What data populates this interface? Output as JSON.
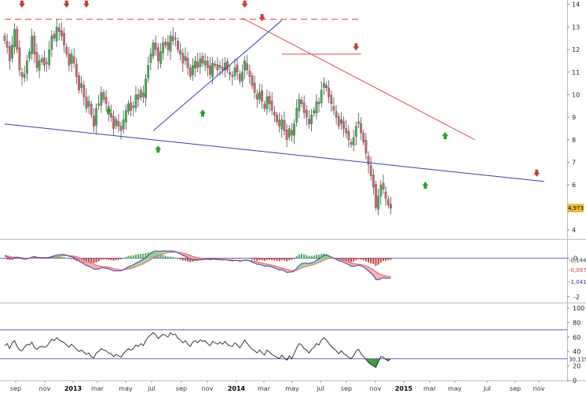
{
  "chart_data": [
    {
      "panel": "price",
      "type": "candlestick",
      "ylim": [
        3.6,
        14.2
      ],
      "yticks": [
        4,
        5,
        6,
        7,
        8,
        9,
        10,
        11,
        12,
        13,
        14
      ],
      "last_value": "4,973",
      "colors": {
        "up": "#3cb34a",
        "down": "#d9606b",
        "trend_up": "#3a3ab0",
        "trend_down": "#d94a4a",
        "arrow_up": "#2aa02a",
        "arrow_down": "#c04040",
        "badge": "#f1c232"
      },
      "close": [
        12.4,
        12.1,
        11.5,
        12.2,
        12.9,
        12.0,
        11.1,
        10.8,
        10.9,
        11.5,
        11.9,
        12.6,
        11.8,
        11.2,
        11.5,
        11.6,
        11.3,
        11.4,
        12.0,
        12.6,
        12.5,
        13.0,
        12.8,
        12.6,
        12.2,
        11.8,
        11.3,
        11.8,
        11.4,
        10.8,
        10.2,
        10.5,
        9.9,
        9.4,
        9.7,
        9.1,
        8.6,
        9.4,
        9.6,
        10.1,
        9.8,
        9.6,
        9.2,
        9.0,
        8.5,
        8.9,
        8.6,
        8.4,
        8.9,
        9.3,
        9.6,
        9.3,
        9.5,
        10.0,
        9.8,
        10.2,
        9.9,
        10.7,
        11.3,
        11.8,
        12.3,
        12.0,
        11.5,
        11.9,
        12.3,
        12.2,
        12.0,
        12.6,
        12.4,
        12.5,
        12.0,
        11.8,
        11.4,
        11.7,
        11.2,
        10.8,
        11.3,
        11.5,
        11.2,
        11.6,
        11.4,
        11.5,
        11.2,
        10.9,
        11.4,
        11.3,
        11.1,
        11.3,
        11.1,
        11.4,
        11.1,
        10.9,
        10.8,
        11.2,
        11.0,
        10.6,
        11.0,
        11.5,
        11.1,
        10.8,
        10.4,
        10.1,
        9.8,
        10.1,
        9.7,
        9.4,
        9.9,
        9.6,
        9.3,
        9.1,
        8.8,
        8.6,
        8.9,
        8.4,
        8.0,
        8.5,
        8.2,
        8.7,
        9.4,
        9.8,
        9.6,
        9.2,
        9.0,
        8.7,
        9.1,
        9.3,
        9.7,
        9.6,
        10.2,
        10.5,
        10.3,
        9.9,
        9.6,
        9.3,
        9.0,
        8.6,
        8.9,
        8.5,
        8.3,
        8.0,
        7.8,
        8.1,
        8.6,
        8.8,
        8.3,
        7.9,
        7.4,
        6.9,
        6.4,
        5.9,
        5.0,
        5.5,
        6.0,
        5.8,
        5.4,
        5.1,
        4.97
      ],
      "trendlines": [
        {
          "from": [
            0,
            13.35
          ],
          "to": [
            144,
            13.35
          ],
          "style": "dashed-red"
        },
        {
          "from": [
            112,
            11.8
          ],
          "to": [
            144,
            11.8
          ],
          "style": "solid-red"
        },
        {
          "from": [
            96,
            13.4
          ],
          "to": [
            190,
            8.0
          ],
          "style": "solid-red"
        },
        {
          "from": [
            60,
            8.4
          ],
          "to": [
            112,
            13.3
          ],
          "style": "solid-blue"
        },
        {
          "from": [
            0,
            8.7
          ],
          "to": [
            218,
            6.15
          ],
          "style": "solid-blue"
        }
      ]
    },
    {
      "panel": "macd",
      "type": "area",
      "ylim": [
        -2.3,
        0.75
      ],
      "yticks": [
        -2,
        0
      ],
      "labels": [
        "-0,144",
        "-0,097",
        "-1,041"
      ],
      "macd": [
        0.12,
        0.06,
        0.0,
        -0.02,
        0.02,
        0.05,
        0.02,
        -0.03,
        -0.06,
        -0.04,
        0.0,
        0.06,
        0.08,
        0.05,
        0.03,
        0.02,
        0.02,
        0.02,
        0.04,
        0.09,
        0.12,
        0.16,
        0.18,
        0.19,
        0.18,
        0.15,
        0.1,
        0.08,
        0.03,
        -0.05,
        -0.14,
        -0.22,
        -0.3,
        -0.38,
        -0.42,
        -0.48,
        -0.56,
        -0.58,
        -0.56,
        -0.5,
        -0.5,
        -0.52,
        -0.56,
        -0.6,
        -0.66,
        -0.66,
        -0.66,
        -0.66,
        -0.6,
        -0.52,
        -0.44,
        -0.4,
        -0.34,
        -0.26,
        -0.2,
        -0.12,
        -0.06,
        0.04,
        0.14,
        0.24,
        0.34,
        0.38,
        0.36,
        0.36,
        0.38,
        0.38,
        0.36,
        0.38,
        0.36,
        0.34,
        0.28,
        0.22,
        0.14,
        0.1,
        0.02,
        -0.06,
        -0.08,
        -0.08,
        -0.1,
        -0.08,
        -0.08,
        -0.06,
        -0.06,
        -0.08,
        -0.06,
        -0.06,
        -0.08,
        -0.08,
        -0.1,
        -0.08,
        -0.1,
        -0.12,
        -0.14,
        -0.12,
        -0.12,
        -0.16,
        -0.14,
        -0.1,
        -0.1,
        -0.14,
        -0.2,
        -0.26,
        -0.32,
        -0.32,
        -0.36,
        -0.42,
        -0.4,
        -0.42,
        -0.46,
        -0.5,
        -0.56,
        -0.62,
        -0.6,
        -0.66,
        -0.74,
        -0.72,
        -0.72,
        -0.66,
        -0.52,
        -0.38,
        -0.28,
        -0.26,
        -0.26,
        -0.28,
        -0.24,
        -0.2,
        -0.1,
        -0.04,
        0.06,
        0.14,
        0.16,
        0.12,
        0.06,
        0.0,
        -0.06,
        -0.14,
        -0.16,
        -0.22,
        -0.28,
        -0.34,
        -0.42,
        -0.44,
        -0.4,
        -0.36,
        -0.4,
        -0.46,
        -0.56,
        -0.66,
        -0.78,
        -0.9,
        -1.1,
        -1.12,
        -1.06,
        -1.02,
        -1.04,
        -1.04,
        -1.04
      ],
      "signal": [
        0.15,
        0.12,
        0.09,
        0.06,
        0.05,
        0.05,
        0.04,
        0.02,
        0.0,
        -0.01,
        -0.01,
        0.0,
        0.02,
        0.03,
        0.03,
        0.03,
        0.03,
        0.03,
        0.03,
        0.04,
        0.06,
        0.08,
        0.1,
        0.12,
        0.13,
        0.14,
        0.13,
        0.12,
        0.11,
        0.08,
        0.04,
        -0.01,
        -0.07,
        -0.13,
        -0.19,
        -0.25,
        -0.31,
        -0.36,
        -0.4,
        -0.42,
        -0.44,
        -0.45,
        -0.47,
        -0.5,
        -0.53,
        -0.56,
        -0.58,
        -0.6,
        -0.6,
        -0.58,
        -0.56,
        -0.53,
        -0.49,
        -0.45,
        -0.4,
        -0.34,
        -0.29,
        -0.22,
        -0.15,
        -0.07,
        0.01,
        0.08,
        0.14,
        0.18,
        0.22,
        0.26,
        0.28,
        0.3,
        0.31,
        0.32,
        0.31,
        0.29,
        0.26,
        0.23,
        0.19,
        0.14,
        0.09,
        0.06,
        0.03,
        0.01,
        -0.01,
        -0.02,
        -0.03,
        -0.04,
        -0.04,
        -0.05,
        -0.05,
        -0.06,
        -0.07,
        -0.07,
        -0.08,
        -0.09,
        -0.1,
        -0.11,
        -0.11,
        -0.12,
        -0.13,
        -0.12,
        -0.12,
        -0.12,
        -0.14,
        -0.16,
        -0.19,
        -0.22,
        -0.25,
        -0.28,
        -0.31,
        -0.33,
        -0.36,
        -0.39,
        -0.43,
        -0.47,
        -0.5,
        -0.54,
        -0.58,
        -0.61,
        -0.64,
        -0.64,
        -0.62,
        -0.57,
        -0.51,
        -0.46,
        -0.42,
        -0.39,
        -0.36,
        -0.33,
        -0.28,
        -0.23,
        -0.17,
        -0.1,
        -0.05,
        -0.02,
        0.0,
        0.0,
        -0.02,
        -0.04,
        -0.07,
        -0.1,
        -0.14,
        -0.18,
        -0.23,
        -0.27,
        -0.3,
        -0.31,
        -0.33,
        -0.35,
        -0.4,
        -0.45,
        -0.52,
        -0.6,
        -0.7,
        -0.78,
        -0.84,
        -0.88,
        -0.91,
        -0.94,
        -0.96
      ]
    },
    {
      "panel": "rsi",
      "type": "line",
      "ylim": [
        0,
        100
      ],
      "yticks": [
        0,
        20,
        40,
        60,
        80,
        100
      ],
      "levels": [
        30,
        70
      ],
      "last_value": "30,119",
      "values": [
        48,
        51,
        44,
        52,
        55,
        47,
        42,
        41,
        46,
        50,
        49,
        53,
        45,
        43,
        46,
        47,
        46,
        47,
        52,
        57,
        55,
        59,
        56,
        54,
        52,
        49,
        46,
        50,
        47,
        43,
        40,
        42,
        39,
        36,
        38,
        33,
        31,
        38,
        40,
        44,
        42,
        41,
        38,
        37,
        33,
        36,
        34,
        32,
        37,
        41,
        44,
        42,
        44,
        49,
        47,
        51,
        48,
        55,
        60,
        63,
        66,
        63,
        58,
        61,
        64,
        62,
        60,
        66,
        63,
        64,
        58,
        56,
        52,
        55,
        50,
        47,
        53,
        55,
        52,
        56,
        54,
        55,
        51,
        48,
        54,
        52,
        50,
        53,
        50,
        54,
        50,
        48,
        47,
        52,
        49,
        45,
        50,
        56,
        51,
        47,
        43,
        41,
        38,
        42,
        38,
        35,
        42,
        39,
        36,
        34,
        32,
        30,
        35,
        31,
        28,
        34,
        30,
        37,
        45,
        51,
        49,
        44,
        42,
        38,
        43,
        46,
        51,
        49,
        56,
        59,
        56,
        51,
        47,
        44,
        41,
        37,
        41,
        37,
        35,
        32,
        30,
        34,
        41,
        43,
        37,
        33,
        29,
        25,
        22,
        20,
        18,
        26,
        33,
        32,
        29,
        27,
        30.1
      ]
    }
  ],
  "xaxis": {
    "ticks": [
      {
        "label": "sep",
        "bold": false
      },
      {
        "label": "nov",
        "bold": false
      },
      {
        "label": "2013",
        "bold": true
      },
      {
        "label": "mar",
        "bold": false
      },
      {
        "label": "may",
        "bold": false
      },
      {
        "label": "jul",
        "bold": false
      },
      {
        "label": "sep",
        "bold": false
      },
      {
        "label": "nov",
        "bold": false
      },
      {
        "label": "2014",
        "bold": true
      },
      {
        "label": "mar",
        "bold": false
      },
      {
        "label": "may",
        "bold": false
      },
      {
        "label": "jul",
        "bold": false
      },
      {
        "label": "sep",
        "bold": false
      },
      {
        "label": "nov",
        "bold": false
      },
      {
        "label": "2015",
        "bold": true
      },
      {
        "label": "mar",
        "bold": false
      },
      {
        "label": "may",
        "bold": false
      },
      {
        "label": "jul",
        "bold": false
      },
      {
        "label": "sep",
        "bold": false
      },
      {
        "label": "nov",
        "bold": false
      }
    ]
  }
}
